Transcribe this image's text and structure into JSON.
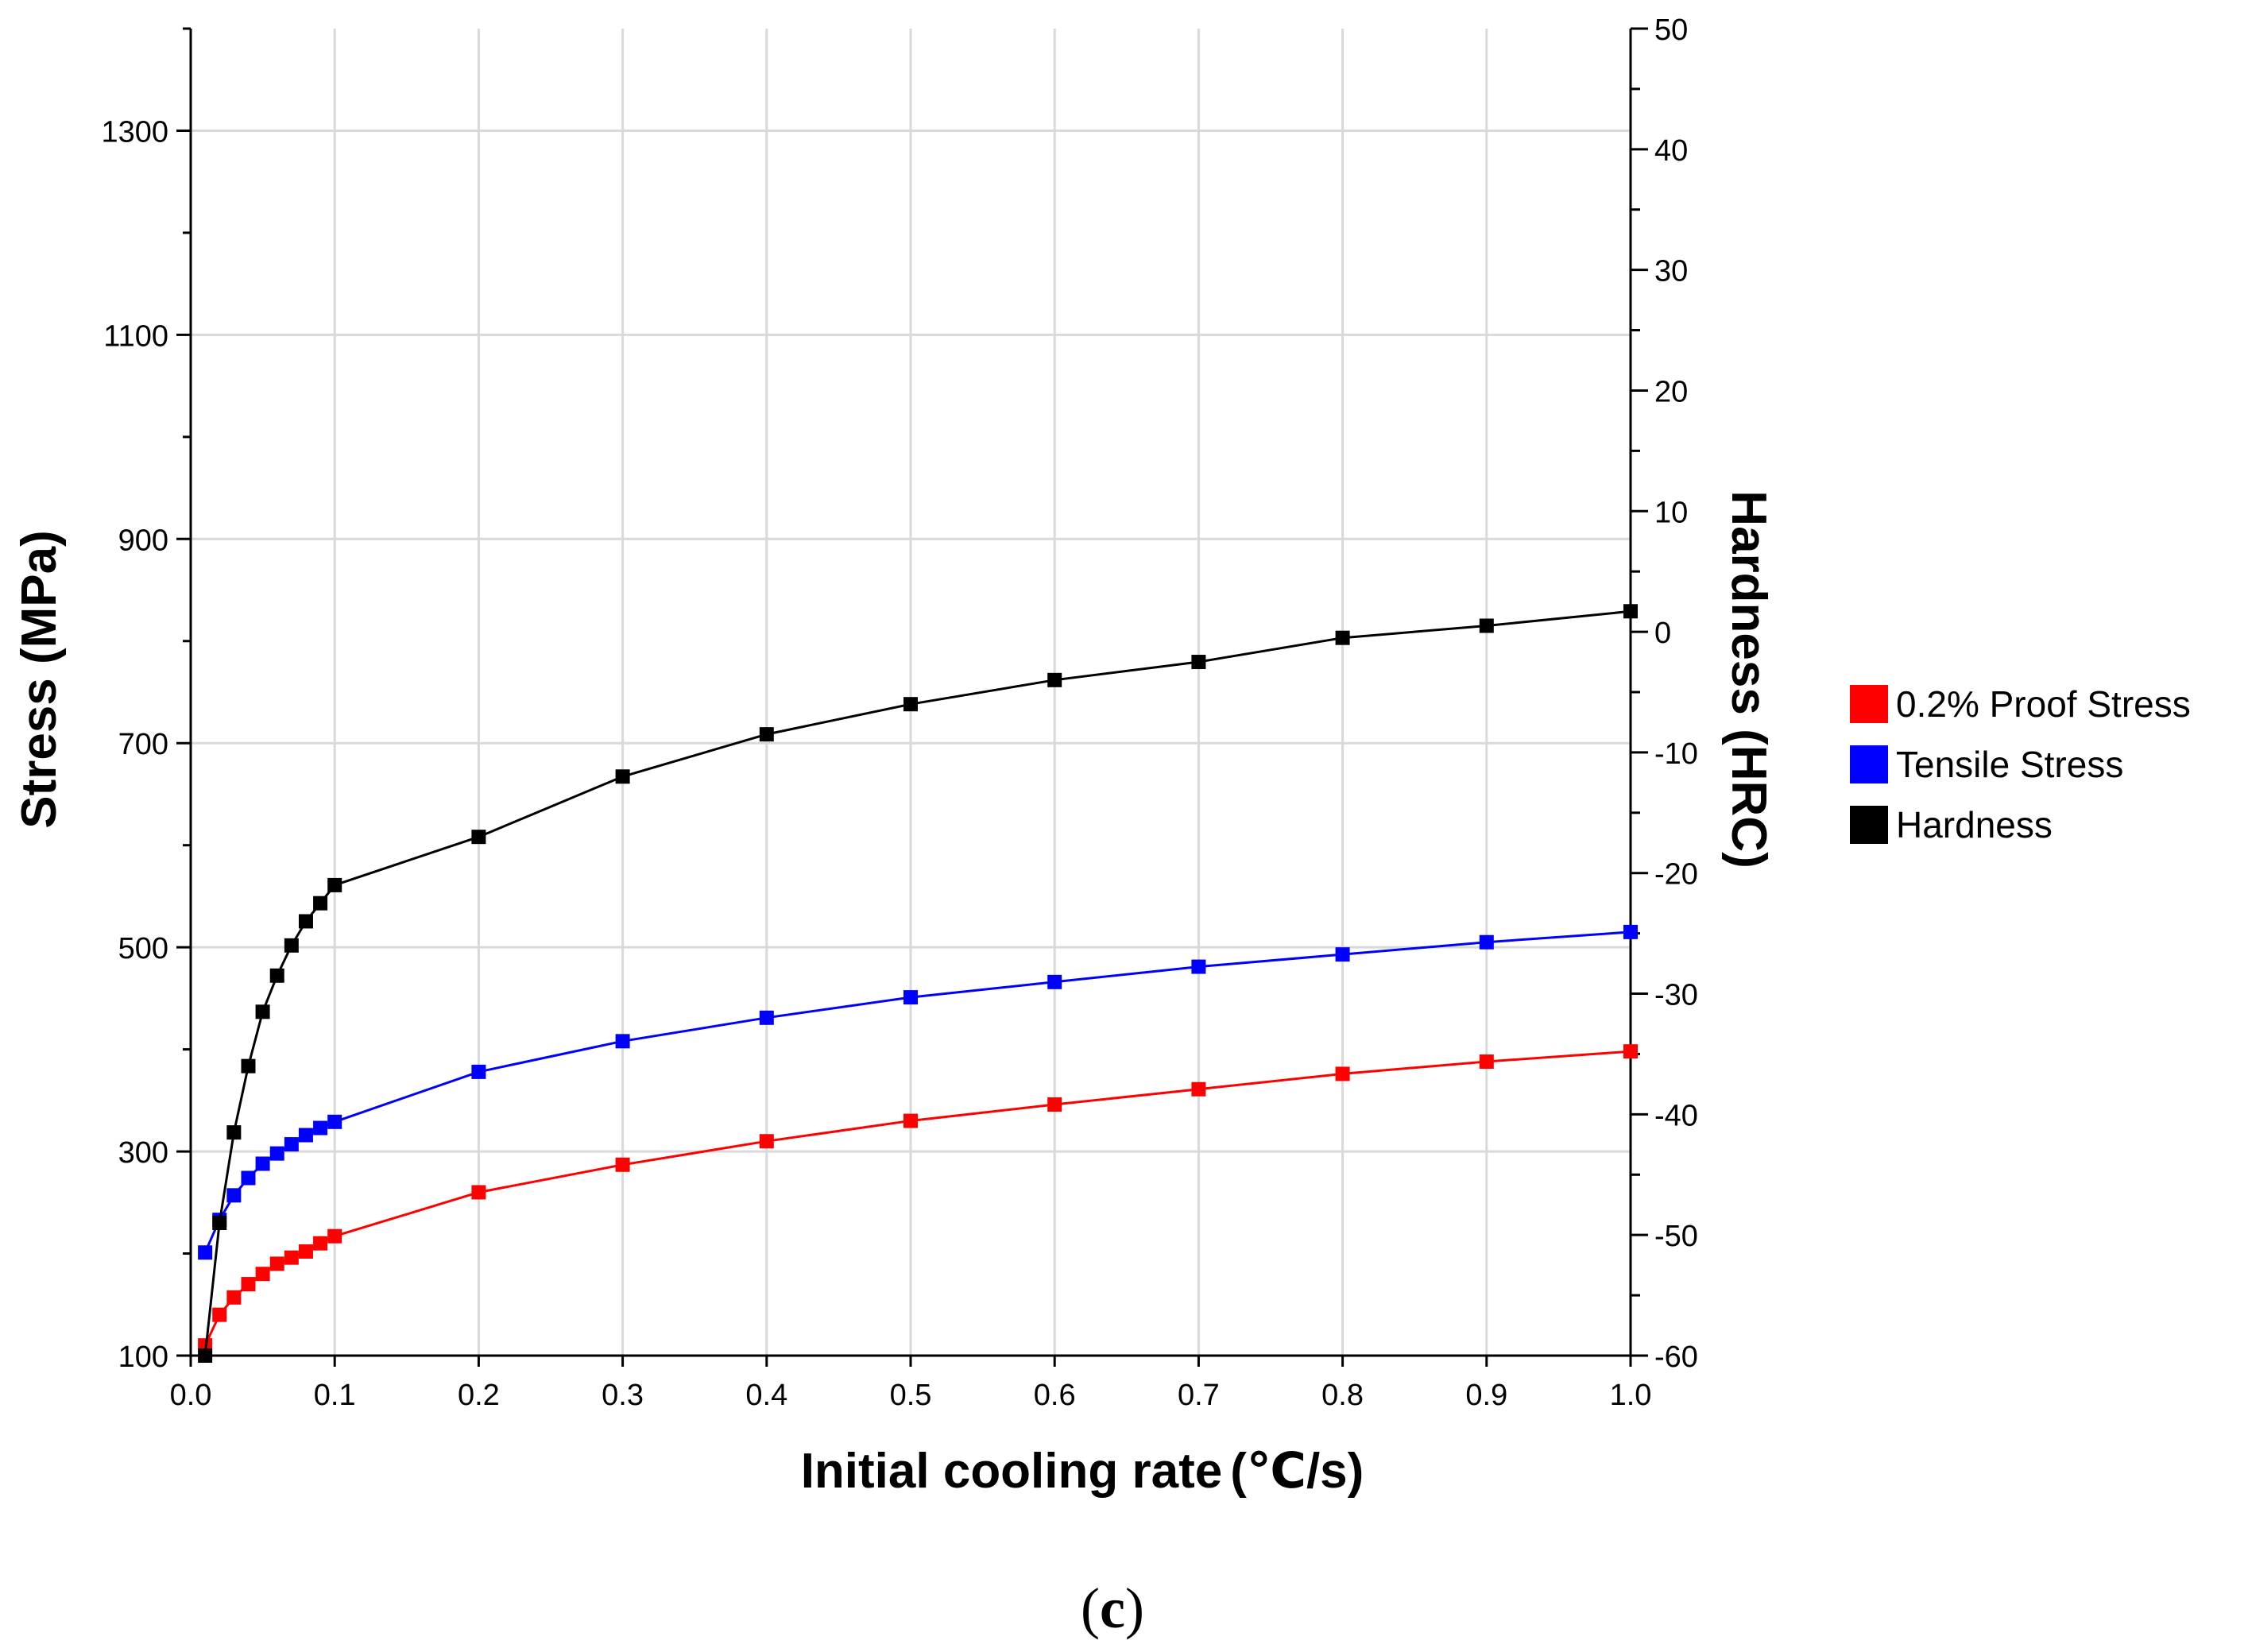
{
  "chart_data": {
    "type": "line",
    "caption_open": "(",
    "caption_letter": "c",
    "caption_close": ")",
    "xlabel": "Initial cooling rate",
    "xlabel_unit": "(℃/s)",
    "ylabel_left": "Stress (MPa)",
    "ylabel_right": "Hardness (HRC)",
    "xlim": [
      0,
      1
    ],
    "ylim_left": [
      100,
      1400
    ],
    "ylim_right": [
      -60,
      50
    ],
    "grid": true,
    "legend_position": "right",
    "x_ticks": [
      "0.0",
      "0.1",
      "0.2",
      "0.3",
      "0.4",
      "0.5",
      "0.6",
      "0.7",
      "0.8",
      "0.9",
      "1.0"
    ],
    "x_tick_values": [
      0,
      0.1,
      0.2,
      0.3,
      0.4,
      0.5,
      0.6,
      0.7,
      0.8,
      0.9,
      1.0
    ],
    "y_left_ticks": [
      "100",
      "300",
      "500",
      "700",
      "900",
      "1100",
      "1300"
    ],
    "y_left_tick_values": [
      100,
      300,
      500,
      700,
      900,
      1100,
      1300
    ],
    "y_right_ticks": [
      "-60",
      "-50",
      "-40",
      "-30",
      "-20",
      "-10",
      "0",
      "10",
      "20",
      "30",
      "40",
      "50"
    ],
    "y_right_tick_values": [
      -60,
      -50,
      -40,
      -30,
      -20,
      -10,
      0,
      10,
      20,
      30,
      40,
      50
    ],
    "x": [
      0.01,
      0.02,
      0.03,
      0.04,
      0.05,
      0.06,
      0.07,
      0.08,
      0.09,
      0.1,
      0.2,
      0.3,
      0.4,
      0.5,
      0.6,
      0.7,
      0.8,
      0.9,
      1.0
    ],
    "series": [
      {
        "name": "0.2% Proof Stress",
        "axis": "left",
        "color": "#ff0000",
        "values": [
          110,
          140,
          157,
          170,
          180,
          190,
          196,
          202,
          210,
          217,
          260,
          287,
          310,
          330,
          346,
          361,
          376,
          388,
          398
        ]
      },
      {
        "name": "Tensile Stress",
        "axis": "left",
        "color": "#0000ff",
        "values": [
          201,
          233,
          257,
          274,
          288,
          298,
          307,
          316,
          323,
          329,
          378,
          408,
          431,
          451,
          466,
          481,
          493,
          505,
          515
        ]
      },
      {
        "name": "Hardness",
        "axis": "right",
        "color": "#000000",
        "values": [
          -60,
          -49,
          -41.5,
          -36,
          -31.5,
          -28.5,
          -26,
          -24,
          -22.5,
          -21,
          -17,
          -12,
          -8.5,
          -6,
          -4,
          -2.5,
          -0.5,
          0.5,
          1.7
        ]
      }
    ]
  }
}
